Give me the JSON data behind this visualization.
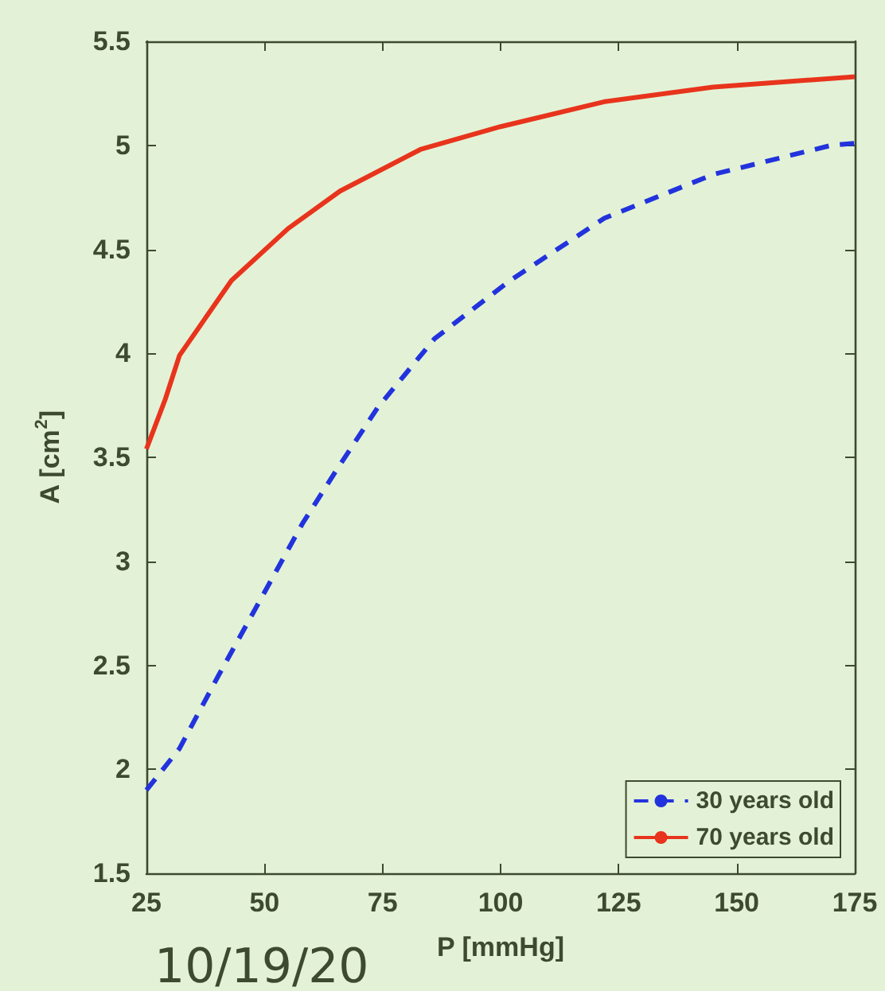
{
  "chart_data": {
    "type": "line",
    "xlabel": "P [mmHg]",
    "ylabel": "A [cm$^{2}$]",
    "xlim": [
      25,
      175
    ],
    "xticks": [
      25,
      50,
      75,
      100,
      125,
      150,
      175
    ],
    "ylim": [
      1.5,
      5.5
    ],
    "yticks": [
      1.5,
      2,
      2.5,
      3,
      3.5,
      4,
      4.5,
      5,
      5.5
    ],
    "grid": false,
    "legend": "bottom right",
    "marker": "none",
    "annotations": [
      "10/19/20"
    ],
    "series": [
      {
        "name": "30 years old",
        "color": "#2233dd",
        "line_style": "dashed",
        "x": [
          25,
          32,
          40,
          49,
          58,
          65,
          74,
          86,
          102,
          122,
          145,
          170,
          175
        ],
        "values": [
          1.9,
          2.1,
          2.44,
          2.81,
          3.18,
          3.43,
          3.74,
          4.07,
          4.35,
          4.65,
          4.86,
          5.0,
          5.01
        ]
      },
      {
        "name": "70 years old",
        "color": "#e8341c",
        "line_style": "solid",
        "x": [
          25,
          29,
          32,
          43,
          55,
          66,
          83,
          100,
          122,
          145,
          175
        ],
        "values": [
          3.54,
          3.78,
          3.99,
          4.35,
          4.6,
          4.78,
          4.98,
          5.09,
          5.21,
          5.28,
          5.33
        ]
      }
    ]
  }
}
